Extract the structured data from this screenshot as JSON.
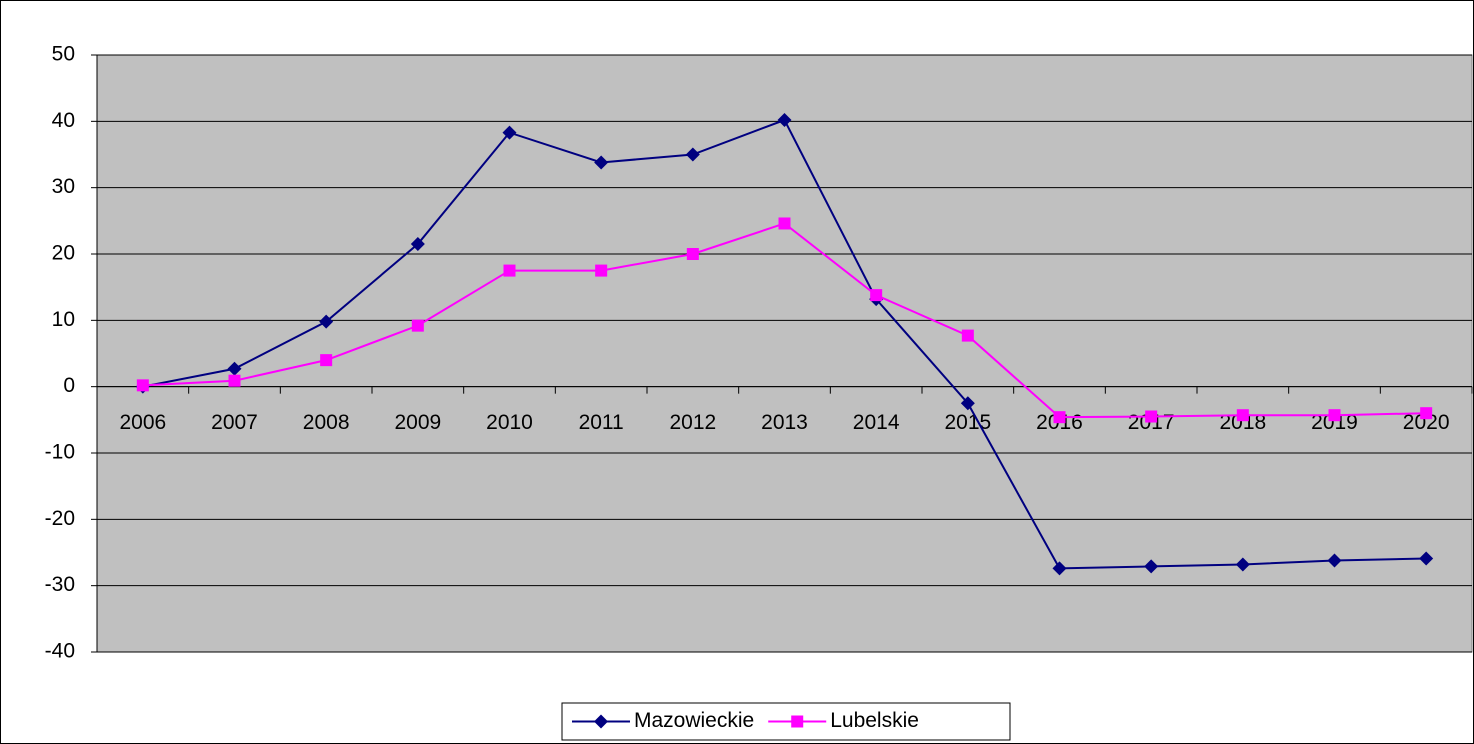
{
  "chart_data": {
    "type": "line",
    "categories": [
      "2006",
      "2007",
      "2008",
      "2009",
      "2010",
      "2011",
      "2012",
      "2013",
      "2014",
      "2015",
      "2016",
      "2017",
      "2018",
      "2019",
      "2020"
    ],
    "series": [
      {
        "name": "Mazowieckie",
        "color": "#000080",
        "marker": "diamond",
        "values": [
          0,
          2.7,
          9.8,
          21.5,
          38.3,
          33.8,
          35,
          40.2,
          13.2,
          -2.5,
          -27.4,
          -27.1,
          -26.8,
          -26.2,
          -25.9
        ]
      },
      {
        "name": "Lubelskie",
        "color": "#ff00ff",
        "marker": "square",
        "values": [
          0.2,
          0.9,
          4,
          9.2,
          17.5,
          17.5,
          20,
          24.6,
          13.8,
          7.7,
          -4.6,
          -4.5,
          -4.3,
          -4.3,
          -4.0
        ]
      }
    ],
    "ylim": [
      -40,
      50
    ],
    "yticks": [
      -40,
      -30,
      -20,
      -10,
      0,
      10,
      20,
      30,
      40,
      50
    ],
    "grid": true,
    "plot_background": "#c0c0c0",
    "legend": "bottom"
  }
}
